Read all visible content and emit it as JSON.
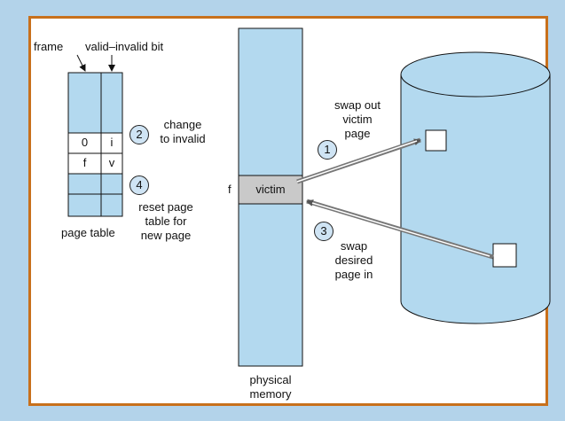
{
  "labels": {
    "frame": "frame",
    "valid_invalid_bit": "valid–invalid bit",
    "page_table": "page table",
    "physical_memory_1": "physical",
    "physical_memory_2": "memory",
    "frame_f": "f",
    "victim": "victim"
  },
  "page_table_rows": [
    {
      "frame": "",
      "bit": ""
    },
    {
      "frame": "",
      "bit": ""
    },
    {
      "frame": "0",
      "bit": "i"
    },
    {
      "frame": "f",
      "bit": "v"
    },
    {
      "frame": "",
      "bit": ""
    },
    {
      "frame": "",
      "bit": ""
    }
  ],
  "steps": [
    {
      "number": "1",
      "lines": [
        "swap out",
        "victim",
        "page"
      ]
    },
    {
      "number": "2",
      "lines": [
        "change",
        "to invalid"
      ]
    },
    {
      "number": "3",
      "lines": [
        "swap",
        "desired",
        "page in"
      ]
    },
    {
      "number": "4",
      "lines": [
        "reset page",
        "table for",
        "new page"
      ]
    }
  ],
  "colors": {
    "background": "#b3d3ea",
    "border": "#c8701c",
    "light_blue": "#b3d9ef",
    "victim_fill": "#c9c9c9",
    "arrow": "#7b7b7b"
  }
}
